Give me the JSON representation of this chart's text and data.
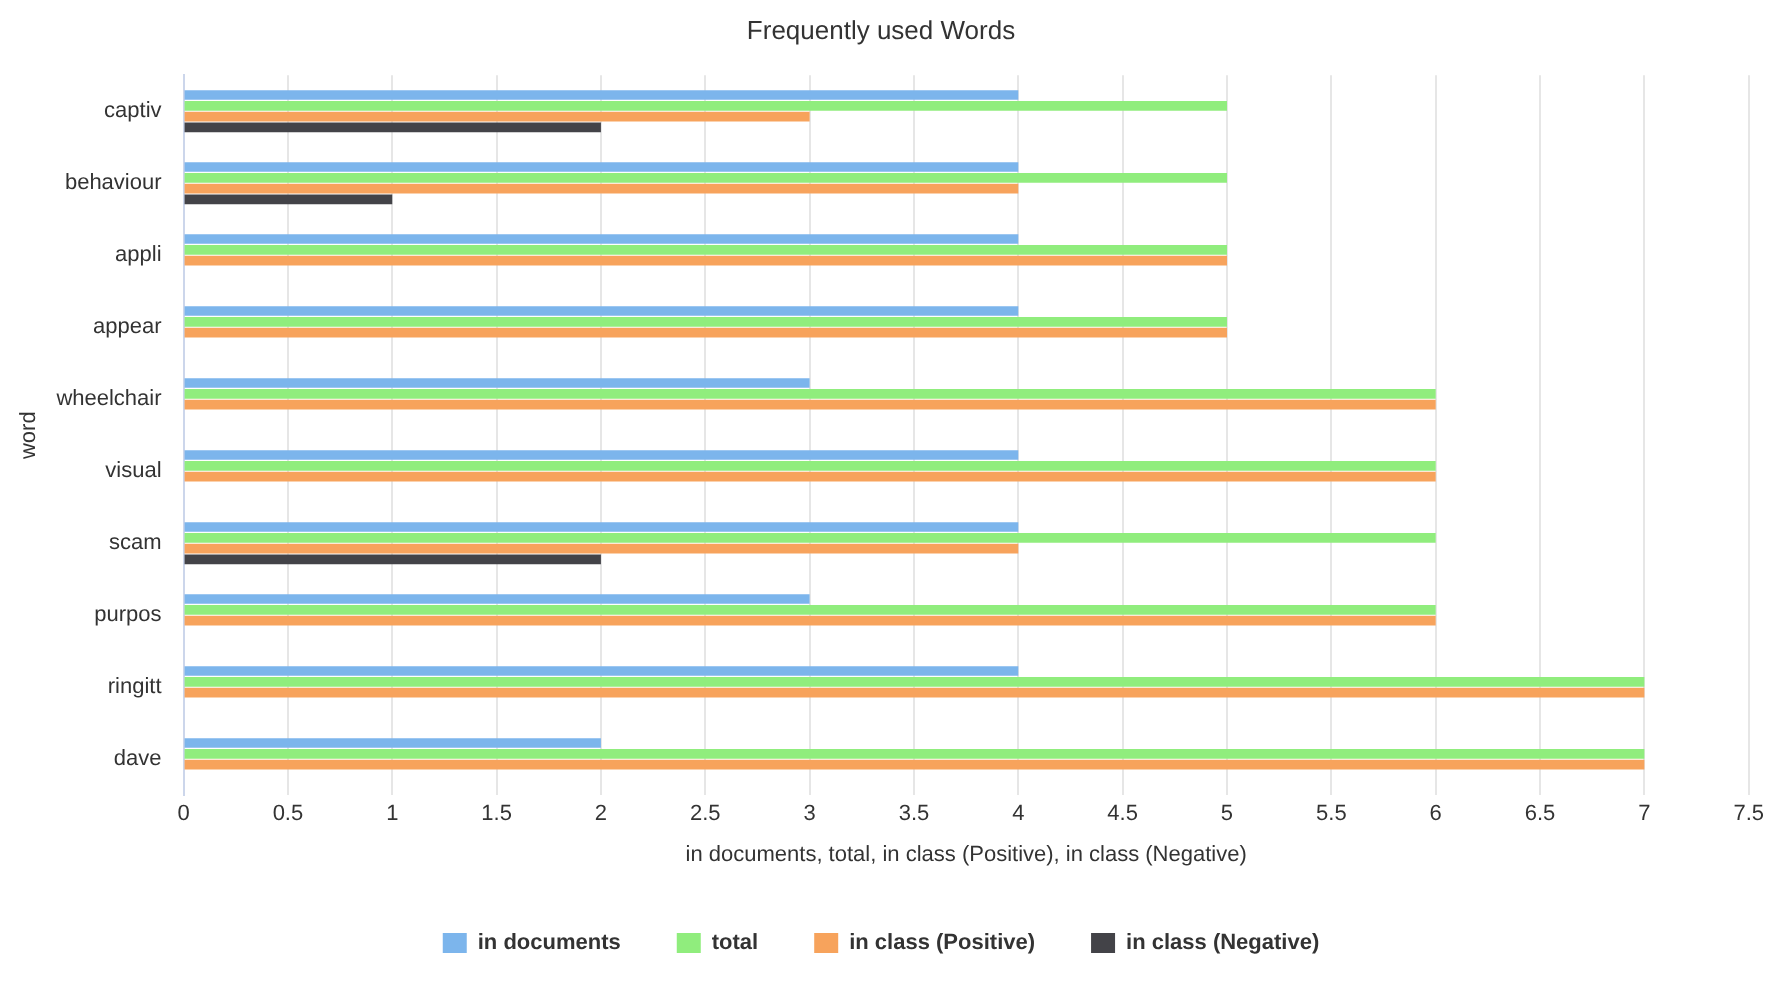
{
  "chart_data": {
    "type": "bar",
    "orientation": "horizontal",
    "title": "Frequently used Words",
    "xlabel": "in documents, total, in class (Positive), in class (Negative)",
    "ylabel": "word",
    "categories": [
      "captiv",
      "behaviour",
      "appli",
      "appear",
      "wheelchair",
      "visual",
      "scam",
      "purpos",
      "ringitt",
      "dave"
    ],
    "series": [
      {
        "name": "in documents",
        "color": "#7cb5ec",
        "values": [
          4,
          4,
          4,
          4,
          3,
          4,
          4,
          3,
          4,
          2
        ]
      },
      {
        "name": "total",
        "color": "#90ed7d",
        "values": [
          5,
          5,
          5,
          5,
          6,
          6,
          6,
          6,
          7,
          7
        ]
      },
      {
        "name": "in class (Positive)",
        "color": "#f7a35c",
        "values": [
          3,
          4,
          5,
          5,
          6,
          6,
          4,
          6,
          7,
          7
        ]
      },
      {
        "name": "in class (Negative)",
        "color": "#434348",
        "values": [
          2,
          1,
          0,
          0,
          0,
          0,
          2,
          0,
          0,
          0
        ]
      }
    ],
    "xlim": [
      0,
      7.5
    ],
    "xticks": [
      0,
      0.5,
      1,
      1.5,
      2,
      2.5,
      3,
      3.5,
      4,
      4.5,
      5,
      5.5,
      6,
      6.5,
      7,
      7.5
    ],
    "grid": "x",
    "legend": "bottom"
  }
}
